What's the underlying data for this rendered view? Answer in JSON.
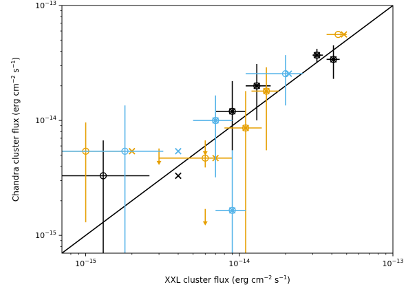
{
  "chart_data": {
    "type": "scatter",
    "xlabel": "XXL cluster flux (erg cm$^{-2}$ s$^{-1}$)",
    "ylabel": "Chandra cluster flux (erg cm$^{-2}$ s$^{-1}$)",
    "x_scale": "log",
    "y_scale": "log",
    "xlim": [
      7e-16,
      1e-13
    ],
    "ylim": [
      7e-16,
      1e-13
    ],
    "x_ticks": [
      {
        "value": 1e-15,
        "mantissa": "10",
        "exponent": "−15"
      },
      {
        "value": 1e-14,
        "mantissa": "10",
        "exponent": "−14"
      },
      {
        "value": 1e-13,
        "mantissa": "10",
        "exponent": "−13"
      }
    ],
    "y_ticks": [
      {
        "value": 1e-15,
        "mantissa": "10",
        "exponent": "−15"
      },
      {
        "value": 1e-14,
        "mantissa": "10",
        "exponent": "−14"
      },
      {
        "value": 1e-13,
        "mantissa": "10",
        "exponent": "−13"
      }
    ],
    "grid": false,
    "legend": "none",
    "one_to_one_line": {
      "from": [
        7e-16,
        7e-16
      ],
      "to": [
        1e-13,
        1e-13
      ],
      "color": "#000000"
    },
    "colors": {
      "black": "#000000",
      "orange": "#E69F00",
      "blue": "#56B4E9"
    },
    "points": [
      {
        "color": "black",
        "marker": "circle",
        "x": 1.3e-15,
        "y": 3.3e-15,
        "xerr": [
          7e-16,
          2.6e-15
        ],
        "yerr": [
          7e-16,
          6.7e-15
        ]
      },
      {
        "color": "black",
        "marker": "x",
        "x": 4e-15,
        "y": 3.3e-15
      },
      {
        "color": "black",
        "marker": "circle",
        "x": 9e-15,
        "y": 1.2e-14,
        "xerr": [
          7e-15,
          1.1e-14
        ],
        "yerr": [
          5.5e-15,
          2.2e-14
        ]
      },
      {
        "color": "black",
        "marker": "x",
        "x": 9e-15,
        "y": 1.2e-14
      },
      {
        "color": "black",
        "marker": "circle",
        "x": 1.3e-14,
        "y": 2e-14,
        "xerr": [
          1.1e-14,
          1.6e-14
        ],
        "yerr": [
          1e-14,
          3.1e-14
        ]
      },
      {
        "color": "black",
        "marker": "x",
        "x": 1.3e-14,
        "y": 2e-14
      },
      {
        "color": "black",
        "marker": "circle",
        "x": 3.2e-14,
        "y": 3.7e-14,
        "xerr": [
          3e-14,
          3.5e-14
        ],
        "yerr": [
          3.2e-14,
          4.2e-14
        ]
      },
      {
        "color": "black",
        "marker": "x",
        "x": 3.2e-14,
        "y": 3.7e-14
      },
      {
        "color": "black",
        "marker": "circle",
        "x": 4.1e-14,
        "y": 3.4e-14,
        "xerr": [
          3.7e-14,
          4.5e-14
        ],
        "yerr": [
          2.3e-14,
          4.5e-14
        ]
      },
      {
        "color": "black",
        "marker": "x",
        "x": 4.1e-14,
        "y": 3.4e-14
      },
      {
        "color": "orange",
        "marker": "circle",
        "x": 1e-15,
        "y": 5.4e-15,
        "xerr": [
          7e-16,
          1.8e-15
        ],
        "yerr": [
          1.3e-15,
          9.6e-15
        ]
      },
      {
        "color": "orange",
        "marker": "x",
        "x": 2e-15,
        "y": 5.4e-15
      },
      {
        "color": "orange",
        "marker": "circle",
        "x": 6e-15,
        "y": 4.7e-15,
        "xerr": [
          3e-15,
          9e-15
        ],
        "yerr": [
          3.9e-15,
          6.7e-15
        ],
        "y_upper_limit": true
      },
      {
        "color": "orange",
        "marker": "x",
        "x": 7e-15,
        "y": 4.7e-15
      },
      {
        "color": "orange",
        "marker": "upper_limit",
        "x": 3e-15,
        "y": 4.7e-15
      },
      {
        "color": "orange",
        "marker": "upper_limit",
        "x": 6e-15,
        "y": 1.4e-15
      },
      {
        "color": "orange",
        "marker": "circle",
        "x": 1.1e-14,
        "y": 8.6e-15,
        "xerr": [
          8e-15,
          1.4e-14
        ],
        "yerr": [
          7e-16,
          1.8e-14
        ]
      },
      {
        "color": "orange",
        "marker": "x",
        "x": 1.1e-14,
        "y": 8.6e-15
      },
      {
        "color": "orange",
        "marker": "circle",
        "x": 1.5e-14,
        "y": 1.8e-14,
        "xerr": [
          1.2e-14,
          1.8e-14
        ],
        "yerr": [
          5.5e-15,
          2.9e-14
        ]
      },
      {
        "color": "orange",
        "marker": "x",
        "x": 1.5e-14,
        "y": 1.8e-14
      },
      {
        "color": "orange",
        "marker": "circle",
        "x": 4.4e-14,
        "y": 5.6e-14,
        "xerr": [
          3.7e-14,
          5e-14
        ]
      },
      {
        "color": "orange",
        "marker": "x",
        "x": 4.8e-14,
        "y": 5.6e-14
      },
      {
        "color": "blue",
        "marker": "circle",
        "x": 1.8e-15,
        "y": 5.4e-15,
        "xerr": [
          7e-16,
          3.2e-15
        ],
        "yerr": [
          7e-16,
          1.35e-14
        ]
      },
      {
        "color": "blue",
        "marker": "x",
        "x": 4e-15,
        "y": 5.4e-15
      },
      {
        "color": "blue",
        "marker": "circle",
        "x": 7e-15,
        "y": 1e-14,
        "xerr": [
          5e-15,
          9e-15
        ],
        "yerr": [
          3.2e-15,
          1.65e-14
        ]
      },
      {
        "color": "blue",
        "marker": "x",
        "x": 7e-15,
        "y": 1e-14
      },
      {
        "color": "blue",
        "marker": "circle",
        "x": 9e-15,
        "y": 1.65e-15,
        "xerr": [
          7e-15,
          1.1e-14
        ],
        "yerr": [
          7e-16,
          5.5e-15
        ]
      },
      {
        "color": "blue",
        "marker": "x",
        "x": 9e-15,
        "y": 1.65e-15
      },
      {
        "color": "blue",
        "marker": "circle",
        "x": 2e-14,
        "y": 2.55e-14,
        "xerr": [
          1.1e-14,
          2.6e-14
        ],
        "yerr": [
          1.35e-14,
          3.7e-14
        ]
      },
      {
        "color": "blue",
        "marker": "x",
        "x": 2.1e-14,
        "y": 2.55e-14
      }
    ]
  }
}
